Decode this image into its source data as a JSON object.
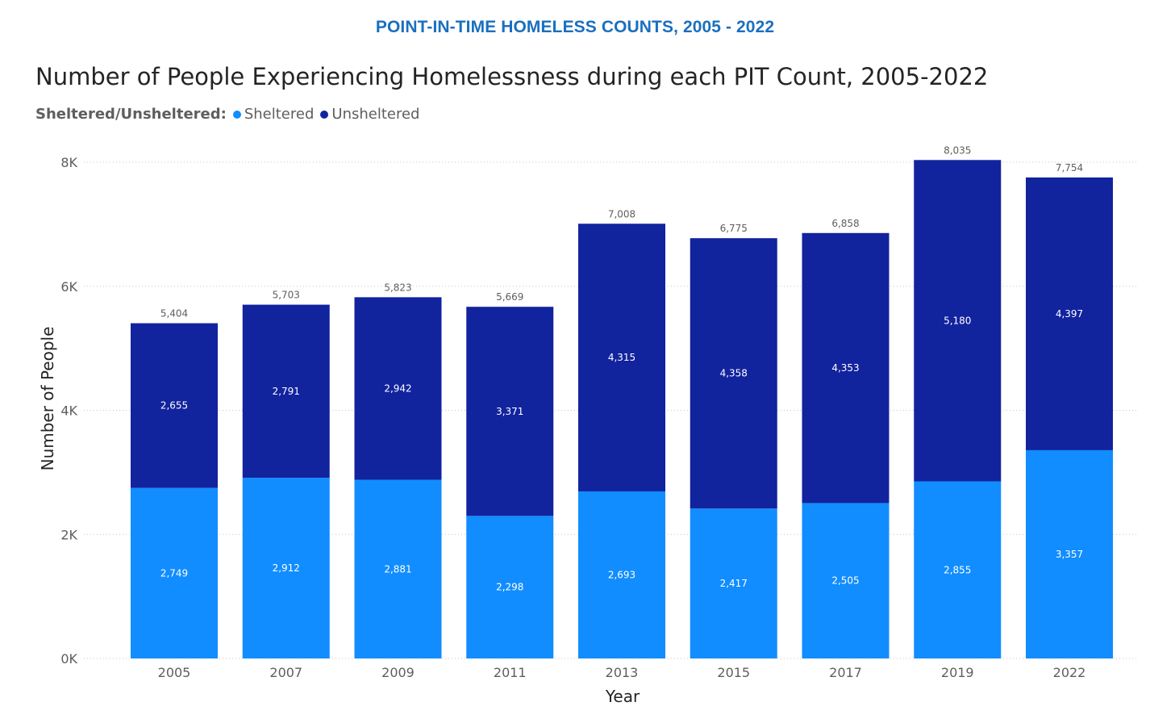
{
  "banner": "POINT-IN-TIME HOMELESS COUNTS, 2005 - 2022",
  "chart_data": {
    "type": "bar",
    "stacked": true,
    "title": "Number of People Experiencing Homelessness during each PIT Count, 2005-2022",
    "legend_title": "Sheltered/Unsheltered:",
    "legend_placement": "top-left",
    "xlabel": "Year",
    "ylabel": "Number of People",
    "ylim": [
      0,
      8000
    ],
    "yticks": [
      0,
      2000,
      4000,
      6000,
      8000
    ],
    "ytick_labels": [
      "0K",
      "2K",
      "4K",
      "6K",
      "8K"
    ],
    "grid": true,
    "categories": [
      "2005",
      "2007",
      "2009",
      "2011",
      "2013",
      "2015",
      "2017",
      "2019",
      "2022"
    ],
    "series": [
      {
        "name": "Sheltered",
        "color": "#118dff",
        "values": [
          2749,
          2912,
          2881,
          2298,
          2693,
          2417,
          2505,
          2855,
          3357
        ],
        "labels": [
          "2,749",
          "2,912",
          "2,881",
          "2,298",
          "2,693",
          "2,417",
          "2,505",
          "2,855",
          "3,357"
        ]
      },
      {
        "name": "Unsheltered",
        "color": "#12239e",
        "values": [
          2655,
          2791,
          2942,
          3371,
          4315,
          4358,
          4353,
          5180,
          4397
        ],
        "labels": [
          "2,655",
          "2,791",
          "2,942",
          "3,371",
          "4,315",
          "4,358",
          "4,353",
          "5,180",
          "4,397"
        ]
      }
    ],
    "totals": [
      5404,
      5703,
      5823,
      5669,
      7008,
      6775,
      6858,
      8035,
      7754
    ],
    "total_labels": [
      "5,404",
      "5,703",
      "5,823",
      "5,669",
      "7,008",
      "6,775",
      "6,858",
      "8,035",
      "7,754"
    ]
  }
}
